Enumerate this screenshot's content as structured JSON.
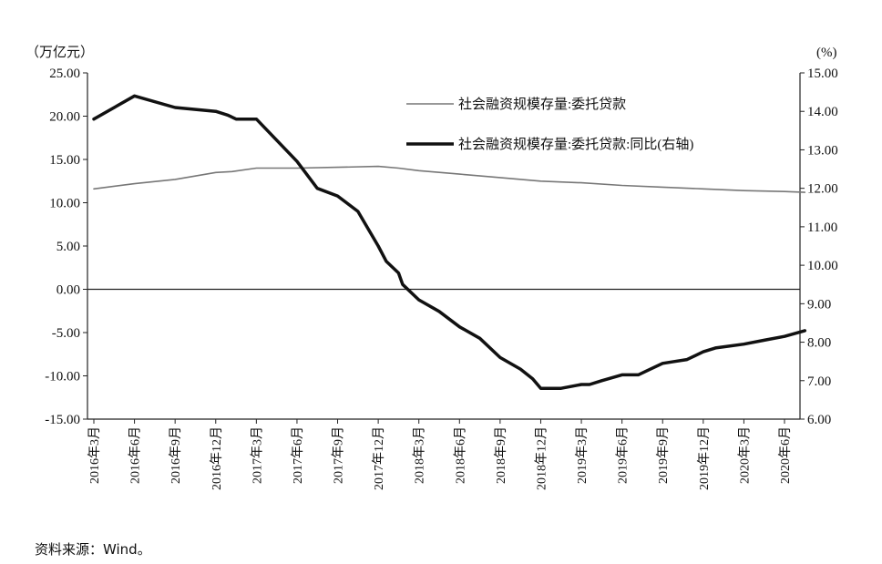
{
  "chart_data": {
    "type": "line",
    "left_unit": "（万亿元）",
    "right_unit": "(%)",
    "left_ylim": [
      -15,
      25
    ],
    "right_ylim": [
      6,
      15
    ],
    "left_ticks": [
      "25.00",
      "20.00",
      "15.00",
      "10.00",
      "5.00",
      "0.00",
      "-5.00",
      "-10.00",
      "-15.00"
    ],
    "right_ticks": [
      "15.00",
      "14.00",
      "13.00",
      "12.00",
      "11.00",
      "10.00",
      "9.00",
      "8.00",
      "7.00",
      "6.00"
    ],
    "categories": [
      "2016年3月",
      "2016年6月",
      "2016年9月",
      "2016年12月",
      "2017年3月",
      "2017年6月",
      "2017年9月",
      "2017年12月",
      "2018年3月",
      "2018年6月",
      "2018年9月",
      "2018年12月",
      "2019年3月",
      "2019年6月",
      "2019年9月",
      "2019年12月",
      "2020年3月",
      "2020年6月"
    ],
    "series": [
      {
        "name": "社会融资规模存量:委托贷款",
        "axis": "left",
        "color": "#777777",
        "width": 1.6,
        "x": [
          0,
          1,
          2,
          3,
          3.4,
          4,
          5,
          6,
          7,
          7.5,
          8,
          9,
          10,
          11,
          12,
          13,
          14,
          15,
          16,
          17,
          17.5
        ],
        "values": [
          11.6,
          12.2,
          12.7,
          13.5,
          13.6,
          14.0,
          14.0,
          14.1,
          14.2,
          14.0,
          13.7,
          13.3,
          12.9,
          12.5,
          12.3,
          12.0,
          11.8,
          11.6,
          11.4,
          11.3,
          11.2
        ]
      },
      {
        "name": "社会融资规模存量:委托贷款:同比(右轴)",
        "axis": "right",
        "color": "#111111",
        "width": 3.5,
        "x": [
          0,
          1,
          2,
          3,
          3.3,
          3.5,
          4,
          5,
          5.5,
          6,
          6.5,
          7,
          7.2,
          7.5,
          7.6,
          8,
          8.5,
          9,
          9.5,
          10,
          10.5,
          10.8,
          11,
          11.5,
          12,
          12.2,
          12.5,
          13,
          13.4,
          13.7,
          14,
          14.3,
          14.6,
          15,
          15.3,
          16,
          16.5,
          17,
          17.5
        ],
        "values": [
          13.8,
          14.4,
          14.1,
          14.0,
          13.9,
          13.8,
          13.8,
          12.7,
          12.0,
          11.8,
          11.4,
          10.5,
          10.1,
          9.8,
          9.5,
          9.1,
          8.8,
          8.4,
          8.1,
          7.6,
          7.3,
          7.05,
          6.8,
          6.8,
          6.9,
          6.9,
          7.0,
          7.15,
          7.15,
          7.3,
          7.45,
          7.5,
          7.55,
          7.75,
          7.85,
          7.95,
          8.05,
          8.15,
          8.3
        ]
      }
    ]
  },
  "source_note": "资料来源：Wind。"
}
